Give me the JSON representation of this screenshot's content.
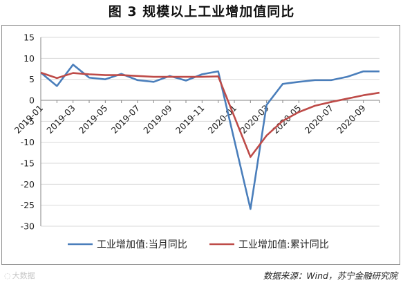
{
  "title": "图 3  规模以上工业增加值同比",
  "source_note": "数据来源：Wind，苏宁金融研究院",
  "watermark": "大数据",
  "colors": {
    "series_1": "#4a7ebb",
    "series_2": "#be4b48",
    "grid": "#d9d9d9",
    "axis": "#868686"
  },
  "chart_data": {
    "type": "line",
    "title": "",
    "xlabel": "",
    "ylabel": "",
    "ylim": [
      -30,
      15
    ],
    "yticks": [
      15,
      10,
      5,
      0,
      -5,
      -10,
      -15,
      -20,
      -25,
      -30
    ],
    "grid": "horizontal",
    "legend_position": "bottom",
    "x": [
      "2019-01",
      "2019-02",
      "2019-03",
      "2019-04",
      "2019-05",
      "2019-06",
      "2019-07",
      "2019-08",
      "2019-09",
      "2019-10",
      "2019-11",
      "2019-12",
      "2020-01",
      "2020-02",
      "2020-03",
      "2020-04",
      "2020-05",
      "2020-06",
      "2020-07",
      "2020-08",
      "2020-09",
      "2020-10"
    ],
    "x_tick_labels": [
      "2019-01",
      "2019-03",
      "2019-05",
      "2019-07",
      "2019-09",
      "2019-11",
      "2020-01",
      "2020-03",
      "2020-05",
      "2020-07",
      "2020-09"
    ],
    "series": [
      {
        "name": "工业增加值:当月同比",
        "color": "#4a7ebb",
        "values": [
          6.6,
          3.4,
          8.5,
          5.4,
          5.0,
          6.3,
          4.8,
          4.4,
          5.8,
          4.7,
          6.2,
          6.9,
          null,
          -25.9,
          -1.1,
          3.9,
          4.4,
          4.8,
          4.8,
          5.6,
          6.9,
          6.9
        ]
      },
      {
        "name": "工业增加值:累计同比",
        "color": "#be4b48",
        "values": [
          6.6,
          5.3,
          6.5,
          6.2,
          6.0,
          6.0,
          5.8,
          5.6,
          5.6,
          5.6,
          5.6,
          5.7,
          null,
          -13.5,
          -8.4,
          -4.9,
          -2.8,
          -1.3,
          -0.4,
          0.4,
          1.2,
          1.8
        ]
      }
    ]
  }
}
